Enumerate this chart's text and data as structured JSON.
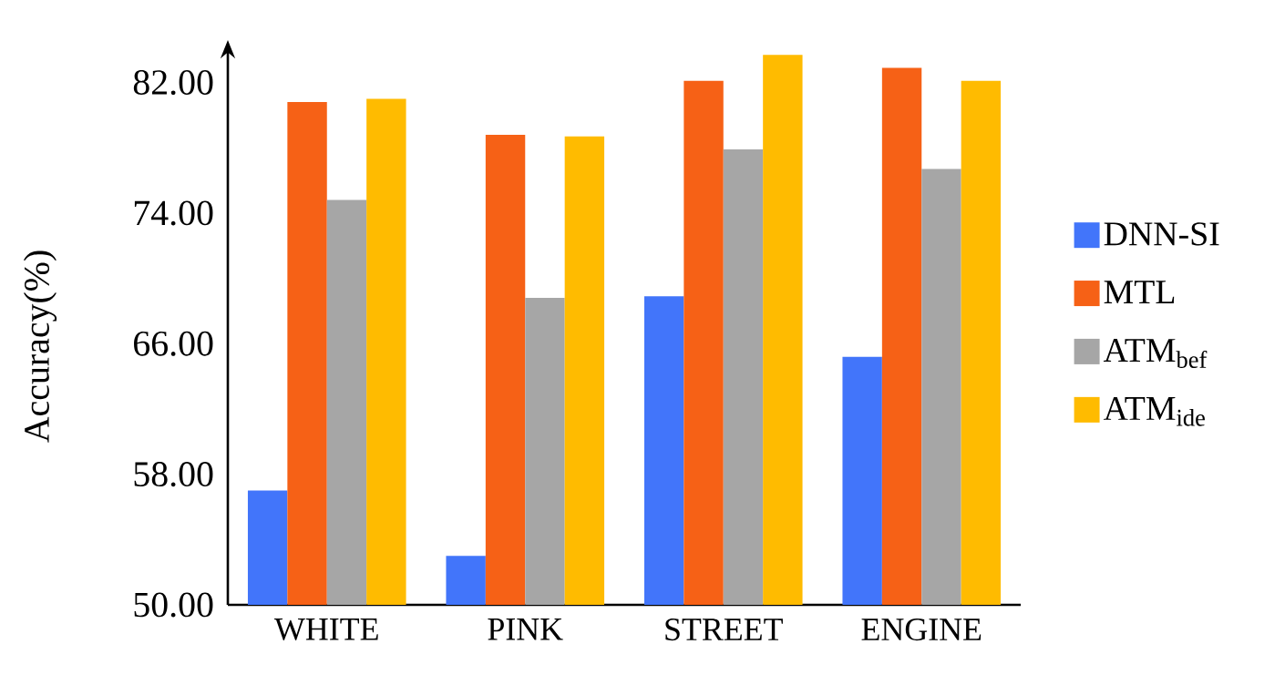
{
  "chart_data": {
    "type": "bar",
    "ylabel": "Accuracy(%)",
    "categories": [
      "WHITE",
      "PINK",
      "STREET",
      "ENGINE"
    ],
    "series": [
      {
        "name": "DNN-SI",
        "color": "#4275fa",
        "values": [
          57.0,
          53.0,
          68.9,
          65.2
        ]
      },
      {
        "name": "MTL",
        "color": "#f66116",
        "values": [
          80.8,
          78.8,
          82.1,
          82.9
        ]
      },
      {
        "name": "ATM$_{bef}$",
        "color": "#a6a6a6",
        "values": [
          74.8,
          68.8,
          77.9,
          76.7
        ]
      },
      {
        "name": "ATM$_{ide}$",
        "color": "#ffbb00",
        "values": [
          81.0,
          78.7,
          83.7,
          82.1
        ]
      }
    ],
    "ylim": [
      50,
      84.6
    ],
    "yticks": [
      {
        "value": 50,
        "label": "50.00"
      },
      {
        "value": 58,
        "label": "58.00"
      },
      {
        "value": 66,
        "label": "66.00"
      },
      {
        "value": 74,
        "label": "74.00"
      },
      {
        "value": 82,
        "label": "82.00"
      }
    ],
    "grid": false,
    "legend": "right"
  }
}
